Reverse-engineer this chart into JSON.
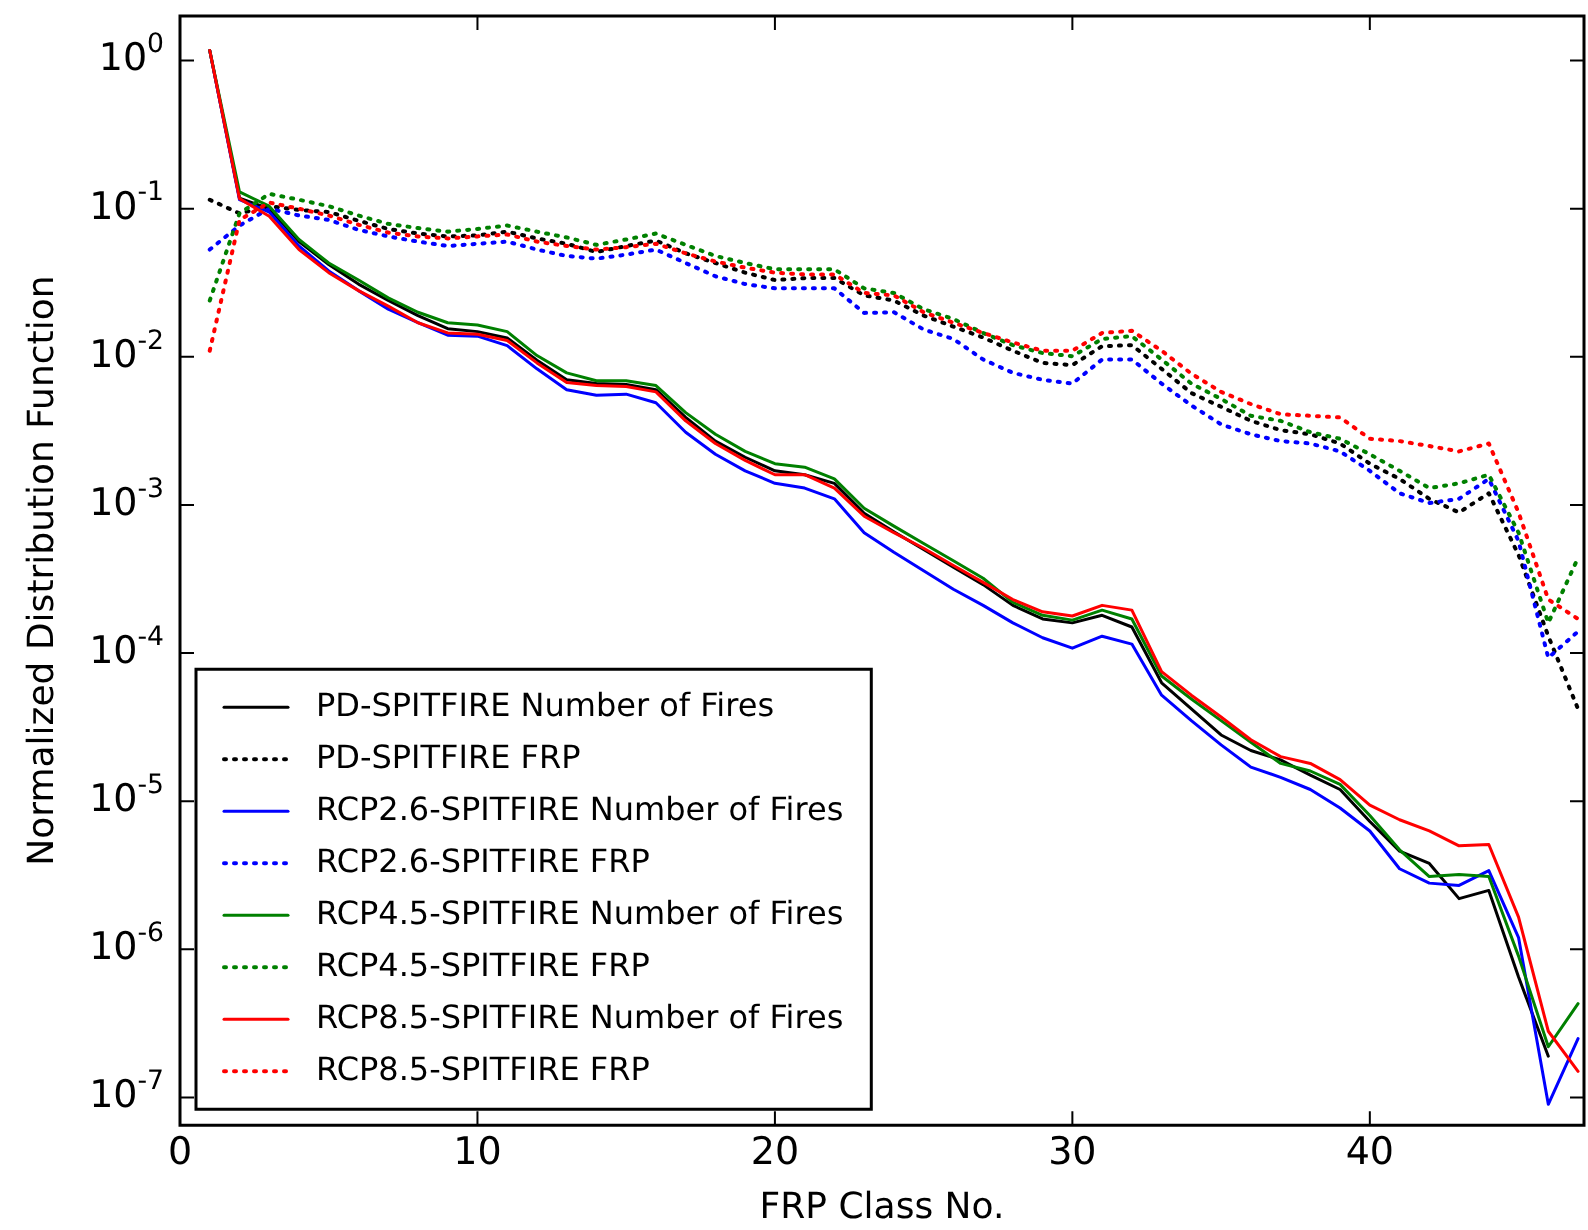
{
  "chart_data": {
    "type": "line",
    "xlabel": "FRP Class No.",
    "ylabel": "Normalized Distribution Function",
    "log": "y",
    "xlim": [
      0,
      47.2
    ],
    "xticks": [
      0,
      10,
      20,
      30,
      40
    ],
    "ylim": [
      6.5e-08,
      2
    ],
    "yticks": [
      {
        "value": 1,
        "label": "10$^{0}$"
      },
      {
        "value": 0.1,
        "label": "10$^{-1}$"
      },
      {
        "value": 0.01,
        "label": "10$^{-2}$"
      },
      {
        "value": 0.001,
        "label": "10$^{-3}$"
      },
      {
        "value": 0.0001,
        "label": "10$^{-4}$"
      },
      {
        "value": 1e-05,
        "label": "10$^{-5}$"
      },
      {
        "value": 1e-06,
        "label": "10$^{-6}$"
      },
      {
        "value": 1e-07,
        "label": "10$^{-7}$"
      }
    ],
    "grid": false,
    "legend": "bottom left",
    "marker": "none",
    "x": [
      1,
      2,
      3,
      4,
      5,
      6,
      7,
      8,
      9,
      10,
      11,
      12,
      13,
      14,
      15,
      16,
      17,
      18,
      19,
      20,
      21,
      22,
      23,
      24,
      25,
      26,
      27,
      28,
      29,
      30,
      31,
      32,
      33,
      34,
      35,
      36,
      37,
      38,
      39,
      40,
      41,
      42,
      43,
      44,
      45,
      46,
      47
    ],
    "series": [
      {
        "name": "PD-SPITFIRE Number of Fires",
        "color": "#000000",
        "line_style": "solid",
        "values": [
          1.17,
          0.118,
          0.1,
          0.06,
          0.042,
          0.031,
          0.024,
          0.019,
          0.0155,
          0.0148,
          0.0134,
          0.0095,
          0.007,
          0.0066,
          0.0065,
          0.006,
          0.0039,
          0.0027,
          0.0021,
          0.0017,
          0.0016,
          0.0014,
          0.00088,
          0.00066,
          0.0005,
          0.00038,
          0.00029,
          0.00021,
          0.00017,
          0.00016,
          0.00018,
          0.00015,
          6.3e-05,
          4.2e-05,
          2.8e-05,
          2.2e-05,
          1.9e-05,
          1.5e-05,
          1.2e-05,
          7.3e-06,
          4.6e-06,
          3.8e-06,
          2.2e-06,
          2.5e-06,
          6.5e-07,
          1.9e-07,
          null
        ]
      },
      {
        "name": "PD-SPITFIRE FRP",
        "color": "#000000",
        "line_style": "dotted",
        "values": [
          0.115,
          0.093,
          0.104,
          0.098,
          0.095,
          0.083,
          0.073,
          0.068,
          0.065,
          0.066,
          0.07,
          0.063,
          0.058,
          0.051,
          0.056,
          0.061,
          0.05,
          0.043,
          0.037,
          0.033,
          0.034,
          0.034,
          0.026,
          0.024,
          0.019,
          0.016,
          0.0135,
          0.011,
          0.0091,
          0.0088,
          0.0118,
          0.012,
          0.0083,
          0.0057,
          0.0046,
          0.0037,
          0.0032,
          0.003,
          0.0026,
          0.0019,
          0.0015,
          0.0011,
          0.00089,
          0.0012,
          0.00046,
          0.00013,
          4.2e-05
        ]
      },
      {
        "name": "RCP2.6-SPITFIRE Number of Fires",
        "color": "#0000ff",
        "line_style": "solid",
        "values": [
          1.17,
          0.115,
          0.095,
          0.056,
          0.038,
          0.028,
          0.021,
          0.017,
          0.014,
          0.0138,
          0.0119,
          0.0083,
          0.006,
          0.0055,
          0.0056,
          0.0049,
          0.0031,
          0.0022,
          0.0017,
          0.0014,
          0.0013,
          0.0011,
          0.00065,
          0.00048,
          0.00036,
          0.00027,
          0.00021,
          0.00016,
          0.000127,
          0.000108,
          0.00013,
          0.000115,
          5.2e-05,
          3.5e-05,
          2.4e-05,
          1.7e-05,
          1.45e-05,
          1.2e-05,
          9e-06,
          6.3e-06,
          3.5e-06,
          2.8e-06,
          2.7e-06,
          3.4e-06,
          1.2e-06,
          9e-08,
          2.5e-07
        ]
      },
      {
        "name": "RCP2.6-SPITFIRE FRP",
        "color": "#0000ff",
        "line_style": "dotted",
        "values": [
          0.053,
          0.077,
          0.1,
          0.09,
          0.084,
          0.072,
          0.065,
          0.06,
          0.056,
          0.058,
          0.06,
          0.053,
          0.048,
          0.046,
          0.049,
          0.053,
          0.043,
          0.035,
          0.031,
          0.029,
          0.029,
          0.029,
          0.0198,
          0.02,
          0.0153,
          0.0132,
          0.0096,
          0.0078,
          0.007,
          0.0066,
          0.0096,
          0.0096,
          0.0066,
          0.0047,
          0.0035,
          0.003,
          0.0027,
          0.0026,
          0.0023,
          0.0017,
          0.0012,
          0.00103,
          0.0011,
          0.0015,
          0.00057,
          9.3e-05,
          0.00014
        ]
      },
      {
        "name": "RCP4.5-SPITFIRE Number of Fires",
        "color": "#008000",
        "line_style": "solid",
        "values": [
          1.17,
          0.13,
          0.104,
          0.062,
          0.043,
          0.033,
          0.025,
          0.02,
          0.017,
          0.0164,
          0.0148,
          0.0102,
          0.0078,
          0.0069,
          0.0069,
          0.0064,
          0.0042,
          0.003,
          0.0023,
          0.0019,
          0.0018,
          0.0015,
          0.00095,
          0.00072,
          0.00055,
          0.00042,
          0.00032,
          0.00022,
          0.00018,
          0.000167,
          0.000195,
          0.00017,
          7e-05,
          4.9e-05,
          3.5e-05,
          2.5e-05,
          1.8e-05,
          1.6e-05,
          1.3e-05,
          8e-06,
          4.7e-06,
          3.1e-06,
          3.2e-06,
          3.1e-06,
          9e-07,
          2.2e-07,
          4.3e-07
        ]
      },
      {
        "name": "RCP4.5-SPITFIRE FRP",
        "color": "#008000",
        "line_style": "dotted",
        "values": [
          0.024,
          0.093,
          0.126,
          0.115,
          0.104,
          0.09,
          0.079,
          0.074,
          0.07,
          0.073,
          0.077,
          0.07,
          0.064,
          0.057,
          0.062,
          0.068,
          0.057,
          0.048,
          0.043,
          0.039,
          0.039,
          0.039,
          0.029,
          0.027,
          0.021,
          0.018,
          0.0145,
          0.012,
          0.0106,
          0.0101,
          0.0132,
          0.0138,
          0.0096,
          0.0066,
          0.0052,
          0.004,
          0.0037,
          0.0031,
          0.0028,
          0.0022,
          0.0017,
          0.0013,
          0.0014,
          0.0016,
          0.00065,
          0.00016,
          0.00044
        ]
      },
      {
        "name": "RCP8.5-SPITFIRE Number of Fires",
        "color": "#ff0000",
        "line_style": "solid",
        "values": [
          1.17,
          0.117,
          0.089,
          0.053,
          0.037,
          0.028,
          0.022,
          0.017,
          0.0145,
          0.0142,
          0.0129,
          0.0091,
          0.0067,
          0.0064,
          0.0063,
          0.0058,
          0.0037,
          0.0026,
          0.002,
          0.0016,
          0.0016,
          0.0013,
          0.00084,
          0.00065,
          0.00051,
          0.00039,
          0.0003,
          0.00023,
          0.00019,
          0.000178,
          0.00021,
          0.000195,
          7.5e-05,
          5.2e-05,
          3.7e-05,
          2.6e-05,
          2e-05,
          1.8e-05,
          1.4e-05,
          9.4e-06,
          7.5e-06,
          6.3e-06,
          5e-06,
          5.1e-06,
          1.65e-06,
          2.8e-07,
          1.5e-07
        ]
      },
      {
        "name": "RCP8.5-SPITFIRE FRP",
        "color": "#ff0000",
        "line_style": "dotted",
        "values": [
          0.011,
          0.084,
          0.11,
          0.1,
          0.09,
          0.078,
          0.069,
          0.065,
          0.063,
          0.065,
          0.067,
          0.06,
          0.056,
          0.053,
          0.055,
          0.058,
          0.05,
          0.044,
          0.04,
          0.037,
          0.036,
          0.036,
          0.027,
          0.026,
          0.02,
          0.017,
          0.0145,
          0.0125,
          0.011,
          0.011,
          0.0145,
          0.015,
          0.011,
          0.0077,
          0.0058,
          0.0048,
          0.0041,
          0.004,
          0.0039,
          0.0028,
          0.0027,
          0.0025,
          0.0023,
          0.0026,
          0.00089,
          0.00023,
          0.00017
        ]
      }
    ]
  }
}
